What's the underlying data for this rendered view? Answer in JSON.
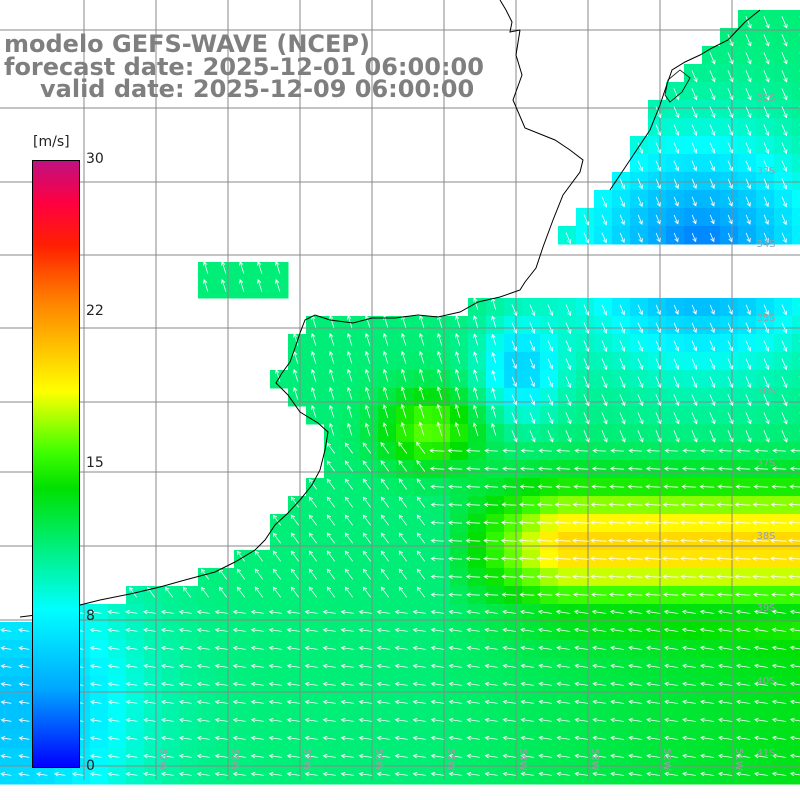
{
  "titles": {
    "line1": "modelo GEFS-WAVE (NCEP)",
    "line2": "forecast date: 2025-12-01 06:00:00",
    "line3": "valid date: 2025-12-09 06:00:00"
  },
  "colorbar": {
    "units": "[m/s]",
    "ticks": [
      "30",
      "22",
      "15",
      "8",
      "0"
    ],
    "range": [
      0,
      30
    ],
    "colors": [
      "#0000ff",
      "#00a8ff",
      "#00ffff",
      "#00e000",
      "#40ff00",
      "#ffff00",
      "#ff8000",
      "#ff2000",
      "#ff0040",
      "#c01080"
    ]
  },
  "lat_labels": [
    "32S",
    "33S",
    "34S",
    "35S",
    "36S",
    "37S",
    "38S",
    "39S",
    "40S",
    "41S"
  ],
  "lon_labels": [
    "59W",
    "58W",
    "57W",
    "56W",
    "55W",
    "54W",
    "53W",
    "52W",
    "51W"
  ],
  "field": {
    "variable": "wind speed",
    "unit": "m/s",
    "arrow_color": "#ffffff"
  }
}
